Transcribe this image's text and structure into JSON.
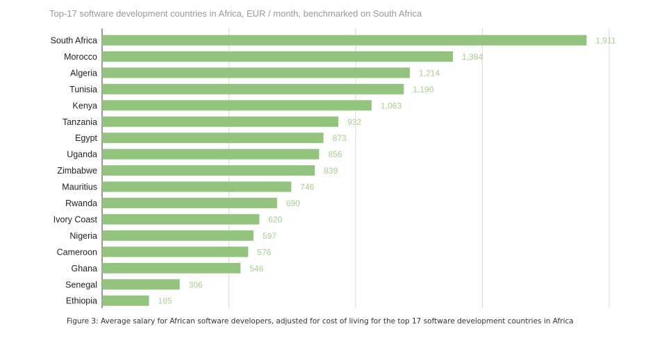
{
  "chart_data": {
    "type": "bar",
    "orientation": "horizontal",
    "title": "Top-17 software development countries in Africa, EUR / month, benchmarked on South Africa",
    "caption": "Figure 3: Average salary for African software developers, adjusted for cost of living for the top 17 software development countries in Africa",
    "categories": [
      "South Africa",
      "Morocco",
      "Algeria",
      "Tunisia",
      "Kenya",
      "Tanzania",
      "Egypt",
      "Uganda",
      "Zimbabwe",
      "Mauritius",
      "Rwanda",
      "Ivory Coast",
      "Nigeria",
      "Cameroon",
      "Ghana",
      "Senegal",
      "Ethiopia"
    ],
    "values": [
      1911,
      1384,
      1214,
      1190,
      1063,
      932,
      873,
      856,
      839,
      746,
      690,
      620,
      597,
      576,
      546,
      306,
      185
    ],
    "value_labels": [
      "1,911",
      "1,384",
      "1,214",
      "1,190",
      "1,063",
      "932",
      "873",
      "856",
      "839",
      "746",
      "690",
      "620",
      "597",
      "576",
      "546",
      "306",
      "185"
    ],
    "xlim": [
      0,
      2000
    ],
    "gridlines_at": [
      500,
      1000,
      1500,
      2000
    ],
    "grid": true,
    "bar_color": "#93c47d",
    "label_color": "#a8cf8e"
  }
}
